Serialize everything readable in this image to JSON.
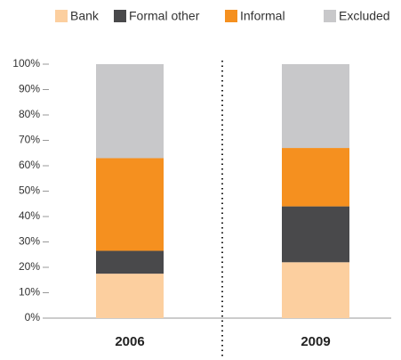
{
  "chart_data": {
    "type": "stacked_bar",
    "categories": [
      "2006",
      "2009"
    ],
    "series": [
      {
        "name": "Bank",
        "color": "#fccf9f",
        "values": [
          17.5,
          22
        ]
      },
      {
        "name": "Formal other",
        "color": "#49494b",
        "values": [
          9,
          22
        ]
      },
      {
        "name": "Informal",
        "color": "#f5901f",
        "values": [
          36.5,
          23
        ]
      },
      {
        "name": "Excluded",
        "color": "#c8c8ca",
        "values": [
          37,
          33
        ]
      }
    ],
    "ylim": [
      0,
      100
    ],
    "yticks": [
      {
        "value": 0,
        "label": "0%"
      },
      {
        "value": 10,
        "label": "10%"
      },
      {
        "value": 20,
        "label": "20%"
      },
      {
        "value": 30,
        "label": "30%"
      },
      {
        "value": 40,
        "label": "40%"
      },
      {
        "value": 50,
        "label": "50%"
      },
      {
        "value": 60,
        "label": "60%"
      },
      {
        "value": 70,
        "label": "70%"
      },
      {
        "value": 80,
        "label": "80%"
      },
      {
        "value": 90,
        "label": "90%"
      },
      {
        "value": 100,
        "label": "100%"
      }
    ],
    "legend": "top"
  }
}
